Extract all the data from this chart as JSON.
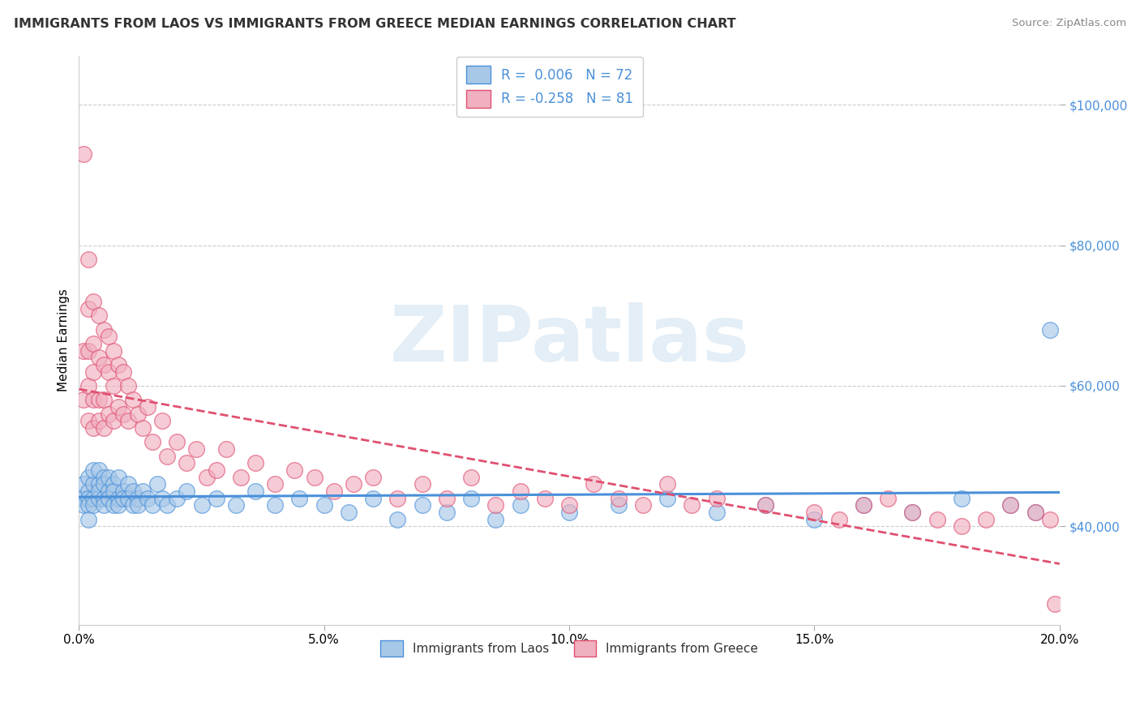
{
  "title": "IMMIGRANTS FROM LAOS VS IMMIGRANTS FROM GREECE MEDIAN EARNINGS CORRELATION CHART",
  "source": "Source: ZipAtlas.com",
  "ylabel": "Median Earnings",
  "legend_bottom": [
    "Immigrants from Laos",
    "Immigrants from Greece"
  ],
  "laos_R": 0.006,
  "laos_N": 72,
  "greece_R": -0.258,
  "greece_N": 81,
  "xlim": [
    0.0,
    0.2
  ],
  "ylim": [
    26000,
    107000
  ],
  "yticks": [
    40000,
    60000,
    80000,
    100000
  ],
  "xticks": [
    0.0,
    0.05,
    0.1,
    0.15,
    0.2
  ],
  "xtick_labels": [
    "0.0%",
    "5.0%",
    "10.0%",
    "15.0%",
    "20.0%"
  ],
  "ytick_labels": [
    "$40,000",
    "$60,000",
    "$80,000",
    "$100,000"
  ],
  "watermark": "ZIPatlas",
  "color_laos": "#a8c8e8",
  "color_greece": "#f0b0c0",
  "color_laos_line": "#4a90d9",
  "color_greece_line": "#e05070",
  "laos_scatter_x": [
    0.001,
    0.001,
    0.001,
    0.002,
    0.002,
    0.002,
    0.002,
    0.002,
    0.003,
    0.003,
    0.003,
    0.003,
    0.004,
    0.004,
    0.004,
    0.004,
    0.005,
    0.005,
    0.005,
    0.005,
    0.006,
    0.006,
    0.006,
    0.007,
    0.007,
    0.007,
    0.008,
    0.008,
    0.008,
    0.009,
    0.009,
    0.01,
    0.01,
    0.011,
    0.011,
    0.012,
    0.012,
    0.013,
    0.014,
    0.015,
    0.016,
    0.017,
    0.018,
    0.02,
    0.022,
    0.025,
    0.028,
    0.032,
    0.036,
    0.04,
    0.045,
    0.05,
    0.055,
    0.06,
    0.065,
    0.07,
    0.075,
    0.08,
    0.085,
    0.09,
    0.1,
    0.11,
    0.12,
    0.13,
    0.14,
    0.15,
    0.16,
    0.17,
    0.18,
    0.19,
    0.195,
    0.198
  ],
  "laos_scatter_y": [
    44000,
    46000,
    43000,
    45000,
    44000,
    47000,
    43000,
    41000,
    44000,
    46000,
    48000,
    43000,
    44000,
    46000,
    45000,
    48000,
    44000,
    47000,
    43000,
    46000,
    45000,
    47000,
    44000,
    43000,
    46000,
    45000,
    44000,
    47000,
    43000,
    45000,
    44000,
    46000,
    44000,
    43000,
    45000,
    44000,
    43000,
    45000,
    44000,
    43000,
    46000,
    44000,
    43000,
    44000,
    45000,
    43000,
    44000,
    43000,
    45000,
    43000,
    44000,
    43000,
    42000,
    44000,
    41000,
    43000,
    42000,
    44000,
    41000,
    43000,
    42000,
    43000,
    44000,
    42000,
    43000,
    41000,
    43000,
    42000,
    44000,
    43000,
    42000,
    68000
  ],
  "greece_scatter_x": [
    0.001,
    0.001,
    0.001,
    0.002,
    0.002,
    0.002,
    0.002,
    0.002,
    0.003,
    0.003,
    0.003,
    0.003,
    0.003,
    0.004,
    0.004,
    0.004,
    0.004,
    0.005,
    0.005,
    0.005,
    0.005,
    0.006,
    0.006,
    0.006,
    0.007,
    0.007,
    0.007,
    0.008,
    0.008,
    0.009,
    0.009,
    0.01,
    0.01,
    0.011,
    0.012,
    0.013,
    0.014,
    0.015,
    0.017,
    0.018,
    0.02,
    0.022,
    0.024,
    0.026,
    0.028,
    0.03,
    0.033,
    0.036,
    0.04,
    0.044,
    0.048,
    0.052,
    0.056,
    0.06,
    0.065,
    0.07,
    0.075,
    0.08,
    0.085,
    0.09,
    0.095,
    0.1,
    0.105,
    0.11,
    0.115,
    0.12,
    0.125,
    0.13,
    0.14,
    0.15,
    0.155,
    0.16,
    0.165,
    0.17,
    0.175,
    0.18,
    0.185,
    0.19,
    0.195,
    0.198,
    0.199
  ],
  "greece_scatter_y": [
    93000,
    65000,
    58000,
    78000,
    71000,
    65000,
    60000,
    55000,
    72000,
    66000,
    62000,
    58000,
    54000,
    70000,
    64000,
    58000,
    55000,
    68000,
    63000,
    58000,
    54000,
    67000,
    62000,
    56000,
    65000,
    60000,
    55000,
    63000,
    57000,
    62000,
    56000,
    60000,
    55000,
    58000,
    56000,
    54000,
    57000,
    52000,
    55000,
    50000,
    52000,
    49000,
    51000,
    47000,
    48000,
    51000,
    47000,
    49000,
    46000,
    48000,
    47000,
    45000,
    46000,
    47000,
    44000,
    46000,
    44000,
    47000,
    43000,
    45000,
    44000,
    43000,
    46000,
    44000,
    43000,
    46000,
    43000,
    44000,
    43000,
    42000,
    41000,
    43000,
    44000,
    42000,
    41000,
    40000,
    41000,
    43000,
    42000,
    41000,
    29000
  ]
}
